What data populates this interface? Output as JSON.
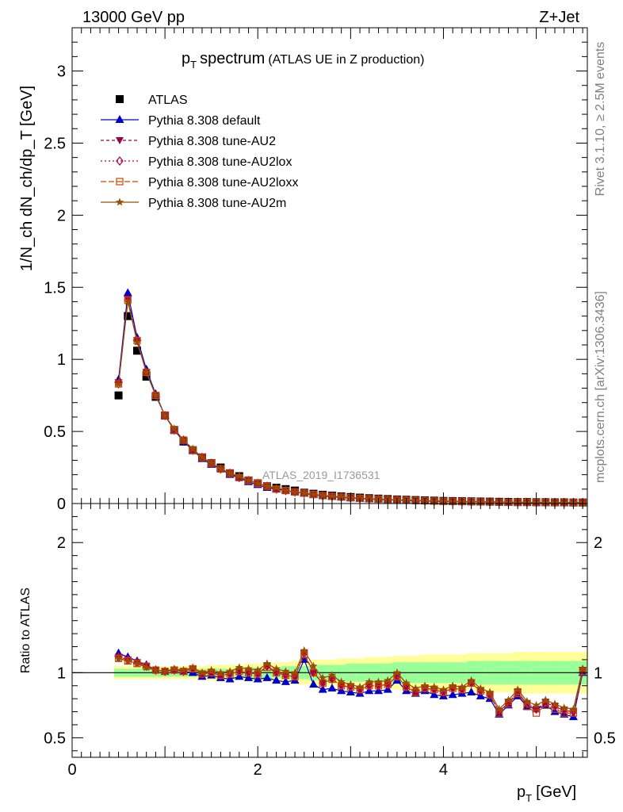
{
  "header": {
    "beam": "13000 GeV pp",
    "process": "Z+Jet"
  },
  "side_text": {
    "rivet": "Rivet 3.1.10, ≥ 2.5M events",
    "mcplots": "mcplots.cern.ch [arXiv:1306.3436]"
  },
  "colors": {
    "atlas": "#000000",
    "default": "#0000cc",
    "au2": "#99004d",
    "au2lox": "#b3003b",
    "au2loxx": "#cc4400",
    "au2m": "#994c00",
    "band_inner": "#99ff99",
    "band_outer": "#ffff99"
  },
  "chart_data": [
    {
      "type": "scatter",
      "title_main": "p",
      "title_sub": "T",
      "title_rest": "spectrum",
      "title_paren": "(ATLAS UE in Z production)",
      "ylabel": "1/N_ch dN_ch/dp_T [GeV]",
      "analysis_label": "ATLAS_2019_I1736531",
      "xlim": [
        0,
        5.55
      ],
      "ylim": [
        0,
        3.3
      ],
      "y_ticks": [
        "0",
        "0.5",
        "1",
        "1.5",
        "2",
        "2.5",
        "3"
      ],
      "x": [
        0.5,
        0.6,
        0.7,
        0.8,
        0.9,
        1.0,
        1.1,
        1.2,
        1.3,
        1.4,
        1.5,
        1.6,
        1.7,
        1.8,
        1.9,
        2.0,
        2.1,
        2.2,
        2.3,
        2.4,
        2.5,
        2.6,
        2.7,
        2.8,
        2.9,
        3.0,
        3.1,
        3.2,
        3.3,
        3.4,
        3.5,
        3.6,
        3.7,
        3.8,
        3.9,
        4.0,
        4.1,
        4.2,
        4.3,
        4.4,
        4.5,
        4.6,
        4.7,
        4.8,
        4.9,
        5.0,
        5.1,
        5.2,
        5.3,
        5.4,
        5.5
      ],
      "series": [
        {
          "name": "ATLAS",
          "marker": "square",
          "values": [
            0.75,
            1.3,
            1.06,
            0.88,
            0.74,
            0.61,
            0.51,
            0.43,
            0.37,
            0.32,
            0.28,
            0.25,
            0.21,
            0.19,
            0.16,
            0.14,
            0.12,
            0.11,
            0.1,
            0.09,
            0.075,
            0.068,
            0.061,
            0.055,
            0.05,
            0.045,
            0.041,
            0.037,
            0.034,
            0.031,
            0.028,
            0.026,
            0.024,
            0.022,
            0.02,
            0.018,
            0.017,
            0.016,
            0.015,
            0.014,
            0.013,
            0.012,
            0.011,
            0.01,
            0.01,
            0.009,
            0.009,
            0.008,
            0.008,
            0.007,
            0.007
          ]
        },
        {
          "name": "Pythia 8.308 default",
          "marker": "triangle",
          "values": [
            0.86,
            1.46,
            1.15,
            0.93,
            0.76,
            0.61,
            0.51,
            0.43,
            0.37,
            0.31,
            0.27,
            0.24,
            0.2,
            0.18,
            0.15,
            0.13,
            0.11,
            0.1,
            0.09,
            0.08,
            0.07,
            0.06,
            0.053,
            0.047,
            0.043,
            0.038,
            0.034,
            0.031,
            0.028,
            0.026,
            0.023,
            0.021,
            0.019,
            0.017,
            0.016,
            0.015,
            0.014,
            0.013,
            0.012,
            0.011,
            0.01,
            0.009,
            0.008,
            0.008,
            0.007,
            0.007,
            0.006,
            0.006,
            0.005,
            0.005,
            0.005
          ]
        },
        {
          "name": "Pythia 8.308 tune-AU2",
          "marker": "triangle-down",
          "values": [
            0.84,
            1.42,
            1.13,
            0.91,
            0.75,
            0.61,
            0.51,
            0.44,
            0.37,
            0.32,
            0.28,
            0.24,
            0.21,
            0.18,
            0.16,
            0.14,
            0.12,
            0.1,
            0.09,
            0.08,
            0.072,
            0.063,
            0.055,
            0.05,
            0.045,
            0.04,
            0.036,
            0.033,
            0.03,
            0.027,
            0.025,
            0.023,
            0.021,
            0.019,
            0.017,
            0.016,
            0.015,
            0.014,
            0.013,
            0.012,
            0.011,
            0.01,
            0.009,
            0.009,
            0.008,
            0.007,
            0.007,
            0.006,
            0.006,
            0.006,
            0.006
          ]
        },
        {
          "name": "Pythia 8.308 tune-AU2lox",
          "marker": "diamond-open",
          "values": [
            0.83,
            1.41,
            1.13,
            0.91,
            0.75,
            0.61,
            0.51,
            0.44,
            0.37,
            0.32,
            0.28,
            0.24,
            0.21,
            0.18,
            0.16,
            0.14,
            0.12,
            0.1,
            0.09,
            0.08,
            0.072,
            0.063,
            0.055,
            0.05,
            0.045,
            0.04,
            0.036,
            0.033,
            0.03,
            0.027,
            0.025,
            0.023,
            0.021,
            0.019,
            0.017,
            0.016,
            0.015,
            0.014,
            0.013,
            0.012,
            0.011,
            0.01,
            0.009,
            0.009,
            0.008,
            0.007,
            0.007,
            0.006,
            0.006,
            0.006,
            0.006
          ]
        },
        {
          "name": "Pythia 8.308 tune-AU2loxx",
          "marker": "square-open",
          "values": [
            0.83,
            1.41,
            1.13,
            0.91,
            0.75,
            0.61,
            0.51,
            0.44,
            0.37,
            0.32,
            0.28,
            0.24,
            0.21,
            0.18,
            0.16,
            0.14,
            0.12,
            0.1,
            0.09,
            0.08,
            0.072,
            0.063,
            0.055,
            0.05,
            0.045,
            0.04,
            0.036,
            0.033,
            0.03,
            0.027,
            0.025,
            0.023,
            0.021,
            0.019,
            0.017,
            0.016,
            0.015,
            0.014,
            0.013,
            0.012,
            0.011,
            0.01,
            0.009,
            0.009,
            0.008,
            0.007,
            0.007,
            0.006,
            0.006,
            0.006,
            0.006
          ]
        },
        {
          "name": "Pythia 8.308 tune-AU2m",
          "marker": "star",
          "values": [
            0.83,
            1.4,
            1.12,
            0.91,
            0.75,
            0.61,
            0.52,
            0.44,
            0.38,
            0.32,
            0.28,
            0.24,
            0.21,
            0.19,
            0.16,
            0.14,
            0.12,
            0.11,
            0.09,
            0.08,
            0.073,
            0.064,
            0.057,
            0.051,
            0.046,
            0.041,
            0.037,
            0.034,
            0.031,
            0.028,
            0.026,
            0.024,
            0.022,
            0.02,
            0.018,
            0.017,
            0.016,
            0.015,
            0.014,
            0.013,
            0.012,
            0.011,
            0.01,
            0.009,
            0.008,
            0.008,
            0.007,
            0.007,
            0.006,
            0.006,
            0.006
          ]
        }
      ]
    },
    {
      "type": "line",
      "ylabel": "Ratio to ATLAS",
      "xlabel_main": "p",
      "xlabel_sub": "T",
      "xlabel_unit": "[GeV]",
      "xlim": [
        0,
        5.55
      ],
      "ylim": [
        0.35,
        2.3
      ],
      "x_ticks": [
        "0",
        "2",
        "4"
      ],
      "y_ticks": [
        "0.5",
        "1",
        "2"
      ],
      "band_inner": [
        0.03,
        0.03,
        0.03,
        0.03,
        0.03,
        0.03,
        0.03,
        0.03,
        0.03,
        0.03,
        0.03,
        0.03,
        0.03,
        0.03,
        0.04,
        0.04,
        0.04,
        0.04,
        0.05,
        0.05,
        0.05,
        0.06,
        0.06,
        0.06,
        0.06,
        0.07,
        0.07,
        0.07,
        0.07,
        0.07,
        0.08,
        0.08,
        0.08,
        0.08,
        0.08,
        0.08,
        0.08,
        0.08,
        0.09,
        0.09,
        0.09,
        0.09,
        0.09,
        0.09,
        0.09,
        0.09,
        0.09,
        0.09,
        0.09,
        0.09,
        0.09
      ],
      "band_outer": [
        0.05,
        0.05,
        0.05,
        0.05,
        0.05,
        0.05,
        0.05,
        0.05,
        0.05,
        0.05,
        0.06,
        0.06,
        0.06,
        0.06,
        0.07,
        0.07,
        0.07,
        0.08,
        0.08,
        0.09,
        0.09,
        0.1,
        0.1,
        0.1,
        0.11,
        0.11,
        0.11,
        0.12,
        0.12,
        0.12,
        0.13,
        0.13,
        0.13,
        0.14,
        0.14,
        0.14,
        0.14,
        0.14,
        0.15,
        0.15,
        0.15,
        0.15,
        0.15,
        0.16,
        0.16,
        0.16,
        0.16,
        0.16,
        0.16,
        0.16,
        0.16
      ],
      "series": [
        {
          "name": "Pythia 8.308 default",
          "values": [
            1.15,
            1.12,
            1.09,
            1.06,
            1.02,
            1.01,
            1.02,
            1.01,
            1.0,
            0.97,
            0.98,
            0.96,
            0.95,
            0.97,
            0.96,
            0.95,
            0.96,
            0.94,
            0.93,
            0.94,
            1.1,
            0.91,
            0.87,
            0.88,
            0.86,
            0.85,
            0.84,
            0.86,
            0.86,
            0.87,
            0.94,
            0.86,
            0.84,
            0.86,
            0.83,
            0.82,
            0.83,
            0.84,
            0.85,
            0.82,
            0.8,
            0.68,
            0.75,
            0.82,
            0.74,
            0.72,
            0.75,
            0.7,
            0.68,
            0.66,
            1.0
          ]
        },
        {
          "name": "Pythia 8.308 tune-AU2",
          "values": [
            1.12,
            1.1,
            1.08,
            1.05,
            1.02,
            1.01,
            1.02,
            1.01,
            1.03,
            0.99,
            1.0,
            0.98,
            0.99,
            1.01,
            1.0,
            0.99,
            1.05,
            1.0,
            0.98,
            0.97,
            1.15,
            1.0,
            0.92,
            0.95,
            0.9,
            0.89,
            0.87,
            0.9,
            0.9,
            0.91,
            0.97,
            0.89,
            0.85,
            0.88,
            0.87,
            0.85,
            0.88,
            0.87,
            0.92,
            0.86,
            0.83,
            0.7,
            0.77,
            0.85,
            0.76,
            0.72,
            0.77,
            0.74,
            0.71,
            0.7,
            1.02
          ]
        },
        {
          "name": "Pythia 8.308 tune-AU2lox",
          "values": [
            1.12,
            1.1,
            1.08,
            1.05,
            1.02,
            1.01,
            1.02,
            1.01,
            1.03,
            0.99,
            1.0,
            0.98,
            0.99,
            1.01,
            1.0,
            0.99,
            1.05,
            1.0,
            0.98,
            0.97,
            1.15,
            1.0,
            0.92,
            0.95,
            0.9,
            0.89,
            0.87,
            0.9,
            0.9,
            0.91,
            0.97,
            0.89,
            0.85,
            0.88,
            0.87,
            0.85,
            0.88,
            0.87,
            0.92,
            0.86,
            0.83,
            0.7,
            0.77,
            0.85,
            0.76,
            0.72,
            0.77,
            0.74,
            0.71,
            0.7,
            1.02
          ]
        },
        {
          "name": "Pythia 8.308 tune-AU2loxx",
          "values": [
            1.11,
            1.09,
            1.07,
            1.05,
            1.02,
            1.01,
            1.02,
            1.01,
            1.03,
            0.99,
            1.0,
            0.98,
            0.99,
            1.01,
            1.0,
            0.99,
            1.04,
            1.0,
            0.98,
            0.97,
            1.14,
            1.0,
            0.92,
            0.95,
            0.9,
            0.89,
            0.87,
            0.9,
            0.9,
            0.91,
            0.97,
            0.89,
            0.85,
            0.88,
            0.87,
            0.85,
            0.88,
            0.87,
            0.92,
            0.86,
            0.83,
            0.69,
            0.76,
            0.84,
            0.74,
            0.69,
            0.75,
            0.72,
            0.69,
            0.69,
            1.01
          ]
        },
        {
          "name": "Pythia 8.308 tune-AU2m",
          "values": [
            1.11,
            1.09,
            1.07,
            1.04,
            1.02,
            1.01,
            1.03,
            1.02,
            1.04,
            1.0,
            1.02,
            1.0,
            1.01,
            1.04,
            1.03,
            1.02,
            1.07,
            1.03,
            1.01,
            1.0,
            1.17,
            1.05,
            0.96,
            0.98,
            0.93,
            0.91,
            0.89,
            0.93,
            0.93,
            0.94,
            1.0,
            0.92,
            0.88,
            0.9,
            0.89,
            0.87,
            0.9,
            0.89,
            0.94,
            0.88,
            0.85,
            0.72,
            0.79,
            0.87,
            0.78,
            0.75,
            0.79,
            0.76,
            0.73,
            0.72,
            1.03
          ]
        }
      ]
    }
  ]
}
